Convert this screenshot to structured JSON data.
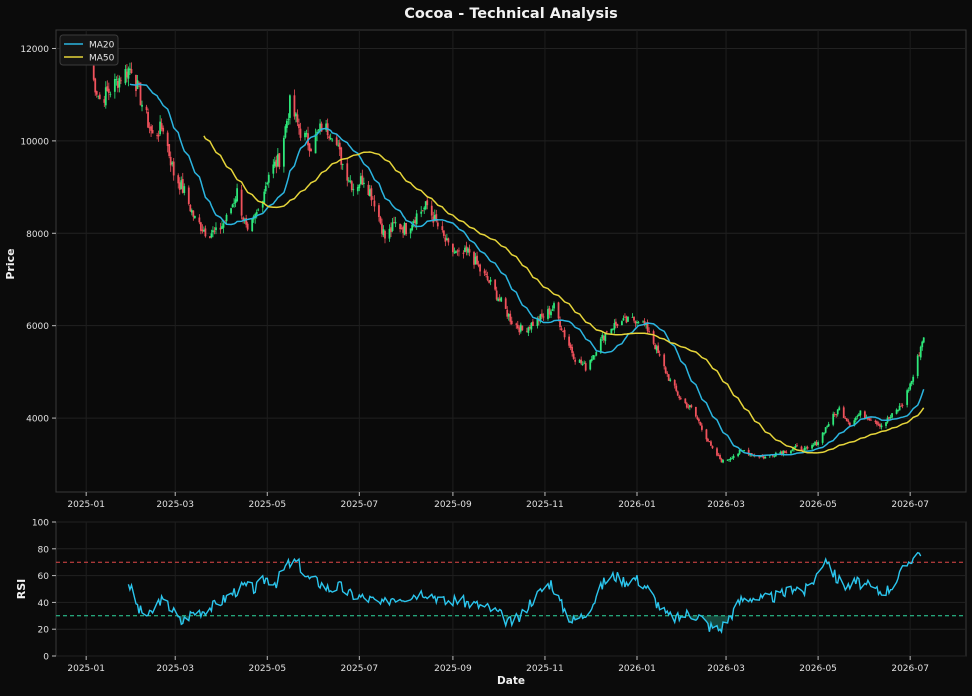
{
  "chart_data": [
    {
      "type": "candlestick",
      "title": "Cocoa - Technical Analysis",
      "ylabel": "Price",
      "xlabel": "",
      "ylim": [
        2400,
        12400
      ],
      "yticks": [
        "4000",
        "6000",
        "8000",
        "10000",
        "12000"
      ],
      "xticks": [
        "2025-01",
        "2025-03",
        "2025-05",
        "2025-07",
        "2025-09",
        "2025-11",
        "2026-01",
        "2026-03",
        "2026-05",
        "2026-07"
      ],
      "grid": true,
      "legend_position": "top-left",
      "up_color": "#2ee87a",
      "down_color": "#f0525c",
      "price_path": [
        [
          "2025-01-03",
          11600
        ],
        [
          "2025-01-10",
          10900
        ],
        [
          "2025-01-17",
          11100
        ],
        [
          "2025-01-24",
          11400
        ],
        [
          "2025-01-31",
          11600
        ],
        [
          "2025-02-07",
          10800
        ],
        [
          "2025-02-14",
          10100
        ],
        [
          "2025-02-21",
          10300
        ],
        [
          "2025-02-28",
          9300
        ],
        [
          "2025-03-07",
          8900
        ],
        [
          "2025-03-14",
          8300
        ],
        [
          "2025-03-21",
          8050
        ],
        [
          "2025-03-28",
          8000
        ],
        [
          "2025-04-04",
          8300
        ],
        [
          "2025-04-11",
          8900
        ],
        [
          "2025-04-18",
          7950
        ],
        [
          "2025-04-25",
          8500
        ],
        [
          "2025-05-02",
          9300
        ],
        [
          "2025-05-09",
          9600
        ],
        [
          "2025-05-16",
          10800
        ],
        [
          "2025-05-23",
          10200
        ],
        [
          "2025-05-30",
          9900
        ],
        [
          "2025-06-06",
          10300
        ],
        [
          "2025-06-13",
          10200
        ],
        [
          "2025-06-20",
          9500
        ],
        [
          "2025-06-27",
          9000
        ],
        [
          "2025-07-04",
          9200
        ],
        [
          "2025-07-11",
          8700
        ],
        [
          "2025-07-18",
          7900
        ],
        [
          "2025-07-25",
          8200
        ],
        [
          "2025-08-01",
          8100
        ],
        [
          "2025-08-08",
          8400
        ],
        [
          "2025-08-15",
          8600
        ],
        [
          "2025-08-22",
          8150
        ],
        [
          "2025-08-29",
          7700
        ],
        [
          "2025-09-05",
          7500
        ],
        [
          "2025-09-12",
          7600
        ],
        [
          "2025-09-19",
          7200
        ],
        [
          "2025-09-26",
          6900
        ],
        [
          "2025-10-03",
          6500
        ],
        [
          "2025-10-10",
          6100
        ],
        [
          "2025-10-17",
          5900
        ],
        [
          "2025-10-24",
          6050
        ],
        [
          "2025-10-31",
          6200
        ],
        [
          "2025-11-07",
          6400
        ],
        [
          "2025-11-14",
          5800
        ],
        [
          "2025-11-21",
          5300
        ],
        [
          "2025-11-28",
          5100
        ],
        [
          "2025-12-05",
          5500
        ],
        [
          "2025-12-12",
          5900
        ],
        [
          "2025-12-19",
          6050
        ],
        [
          "2025-12-26",
          6100
        ],
        [
          "2026-01-02",
          6150
        ],
        [
          "2026-01-09",
          5900
        ],
        [
          "2026-01-16",
          5300
        ],
        [
          "2026-01-23",
          4800
        ],
        [
          "2026-01-30",
          4400
        ],
        [
          "2026-02-06",
          4200
        ],
        [
          "2026-02-13",
          3800
        ],
        [
          "2026-02-20",
          3300
        ],
        [
          "2026-02-27",
          3050
        ],
        [
          "2026-03-06",
          3200
        ],
        [
          "2026-03-13",
          3300
        ],
        [
          "2026-03-20",
          3200
        ],
        [
          "2026-03-27",
          3150
        ],
        [
          "2026-04-03",
          3250
        ],
        [
          "2026-04-10",
          3300
        ],
        [
          "2026-04-17",
          3350
        ],
        [
          "2026-04-24",
          3300
        ],
        [
          "2026-05-01",
          3500
        ],
        [
          "2026-05-08",
          3900
        ],
        [
          "2026-05-15",
          4200
        ],
        [
          "2026-05-22",
          3900
        ],
        [
          "2026-05-29",
          4100
        ],
        [
          "2026-06-05",
          4000
        ],
        [
          "2026-06-12",
          3850
        ],
        [
          "2026-06-19",
          4050
        ],
        [
          "2026-06-26",
          4300
        ],
        [
          "2026-07-03",
          4900
        ],
        [
          "2026-07-10",
          5800
        ]
      ],
      "series": [
        {
          "name": "MA20",
          "color": "#2bb5e0",
          "start": "2025-01-29"
        },
        {
          "name": "MA50",
          "color": "#e6d53a",
          "start": "2025-03-20"
        }
      ]
    },
    {
      "type": "line",
      "title": "",
      "ylabel": "RSI",
      "xlabel": "Date",
      "ylim": [
        0,
        100
      ],
      "yticks": [
        "0",
        "20",
        "40",
        "60",
        "80",
        "100"
      ],
      "xticks": [
        "2025-01",
        "2025-03",
        "2025-05",
        "2025-07",
        "2025-09",
        "2025-11",
        "2026-01",
        "2026-03",
        "2026-05",
        "2026-07"
      ],
      "overbought": 70,
      "oversold": 30,
      "colors": {
        "line": "#2bc6ee",
        "overbought": "#e04848",
        "oversold": "#2ed8a0",
        "fill": "#1f7a66"
      },
      "rsi_path": [
        [
          "2025-01-29",
          55
        ],
        [
          "2025-02-05",
          34
        ],
        [
          "2025-02-12",
          30
        ],
        [
          "2025-02-19",
          42
        ],
        [
          "2025-02-26",
          36
        ],
        [
          "2025-03-05",
          25
        ],
        [
          "2025-03-12",
          32
        ],
        [
          "2025-03-19",
          34
        ],
        [
          "2025-03-26",
          37
        ],
        [
          "2025-04-02",
          42
        ],
        [
          "2025-04-09",
          48
        ],
        [
          "2025-04-16",
          52
        ],
        [
          "2025-04-23",
          50
        ],
        [
          "2025-04-30",
          58
        ],
        [
          "2025-05-07",
          55
        ],
        [
          "2025-05-14",
          68
        ],
        [
          "2025-05-21",
          70
        ],
        [
          "2025-05-28",
          58
        ],
        [
          "2025-06-04",
          55
        ],
        [
          "2025-06-11",
          50
        ],
        [
          "2025-06-18",
          52
        ],
        [
          "2025-06-25",
          46
        ],
        [
          "2025-07-02",
          44
        ],
        [
          "2025-07-09",
          42
        ],
        [
          "2025-07-16",
          38
        ],
        [
          "2025-07-23",
          44
        ],
        [
          "2025-07-30",
          44
        ],
        [
          "2025-08-06",
          46
        ],
        [
          "2025-08-13",
          48
        ],
        [
          "2025-08-20",
          45
        ],
        [
          "2025-08-27",
          40
        ],
        [
          "2025-09-03",
          42
        ],
        [
          "2025-09-10",
          40
        ],
        [
          "2025-09-17",
          38
        ],
        [
          "2025-09-24",
          36
        ],
        [
          "2025-10-01",
          32
        ],
        [
          "2025-10-08",
          25
        ],
        [
          "2025-10-15",
          28
        ],
        [
          "2025-10-22",
          40
        ],
        [
          "2025-10-29",
          48
        ],
        [
          "2025-11-05",
          55
        ],
        [
          "2025-11-12",
          38
        ],
        [
          "2025-11-19",
          26
        ],
        [
          "2025-11-26",
          30
        ],
        [
          "2025-12-03",
          40
        ],
        [
          "2025-12-10",
          55
        ],
        [
          "2025-12-17",
          60
        ],
        [
          "2025-12-24",
          56
        ],
        [
          "2025-12-31",
          58
        ],
        [
          "2026-01-07",
          52
        ],
        [
          "2026-01-14",
          40
        ],
        [
          "2026-01-21",
          30
        ],
        [
          "2026-01-28",
          28
        ],
        [
          "2026-02-04",
          32
        ],
        [
          "2026-02-11",
          30
        ],
        [
          "2026-02-18",
          22
        ],
        [
          "2026-02-25",
          20
        ],
        [
          "2026-03-04",
          30
        ],
        [
          "2026-03-11",
          42
        ],
        [
          "2026-03-18",
          44
        ],
        [
          "2026-03-25",
          42
        ],
        [
          "2026-04-01",
          44
        ],
        [
          "2026-04-08",
          46
        ],
        [
          "2026-04-15",
          52
        ],
        [
          "2026-04-22",
          48
        ],
        [
          "2026-04-29",
          58
        ],
        [
          "2026-05-06",
          74
        ],
        [
          "2026-05-13",
          58
        ],
        [
          "2026-05-20",
          52
        ],
        [
          "2026-05-27",
          55
        ],
        [
          "2026-06-03",
          52
        ],
        [
          "2026-06-10",
          48
        ],
        [
          "2026-06-17",
          50
        ],
        [
          "2026-06-24",
          60
        ],
        [
          "2026-07-01",
          72
        ],
        [
          "2026-07-08",
          78
        ]
      ]
    }
  ],
  "header": {
    "title": "Cocoa - Technical Analysis"
  },
  "legend": {
    "ma20": "MA20",
    "ma50": "MA50"
  },
  "axes": {
    "price_label": "Price",
    "rsi_label": "RSI",
    "date_label": "Date"
  }
}
